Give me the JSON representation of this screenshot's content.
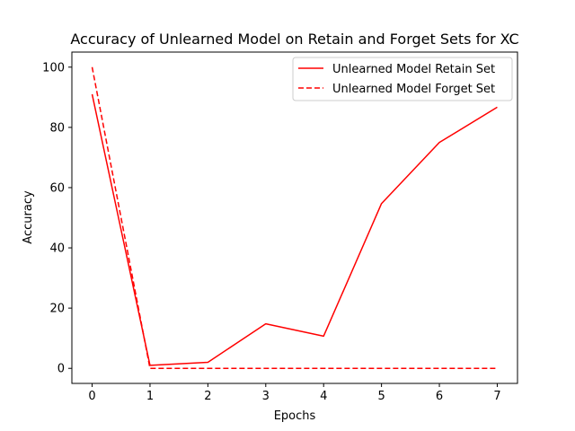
{
  "chart_data": {
    "type": "line",
    "title": "Accuracy of Unlearned Model on Retain and Forget Sets for XC",
    "xlabel": "Epochs",
    "ylabel": "Accuracy",
    "x": [
      0,
      1,
      2,
      3,
      4,
      5,
      6,
      7
    ],
    "xlim": [
      -0.35,
      7.35
    ],
    "ylim": [
      -5,
      105
    ],
    "xticks": [
      "0",
      "1",
      "2",
      "3",
      "4",
      "5",
      "6",
      "7"
    ],
    "yticks": [
      "0",
      "20",
      "40",
      "60",
      "80",
      "100"
    ],
    "grid": false,
    "legend_position": "top-right",
    "series": [
      {
        "name": "Unlearned Model Retain Set",
        "values": [
          91,
          1,
          2,
          14.8,
          10.7,
          54.7,
          75,
          86.7
        ],
        "color": "#ff0000",
        "style": "solid"
      },
      {
        "name": "Unlearned Model Forget Set",
        "values": [
          100,
          0,
          0,
          0,
          0,
          0,
          0,
          0
        ],
        "color": "#ff0000",
        "style": "dashed"
      }
    ]
  }
}
